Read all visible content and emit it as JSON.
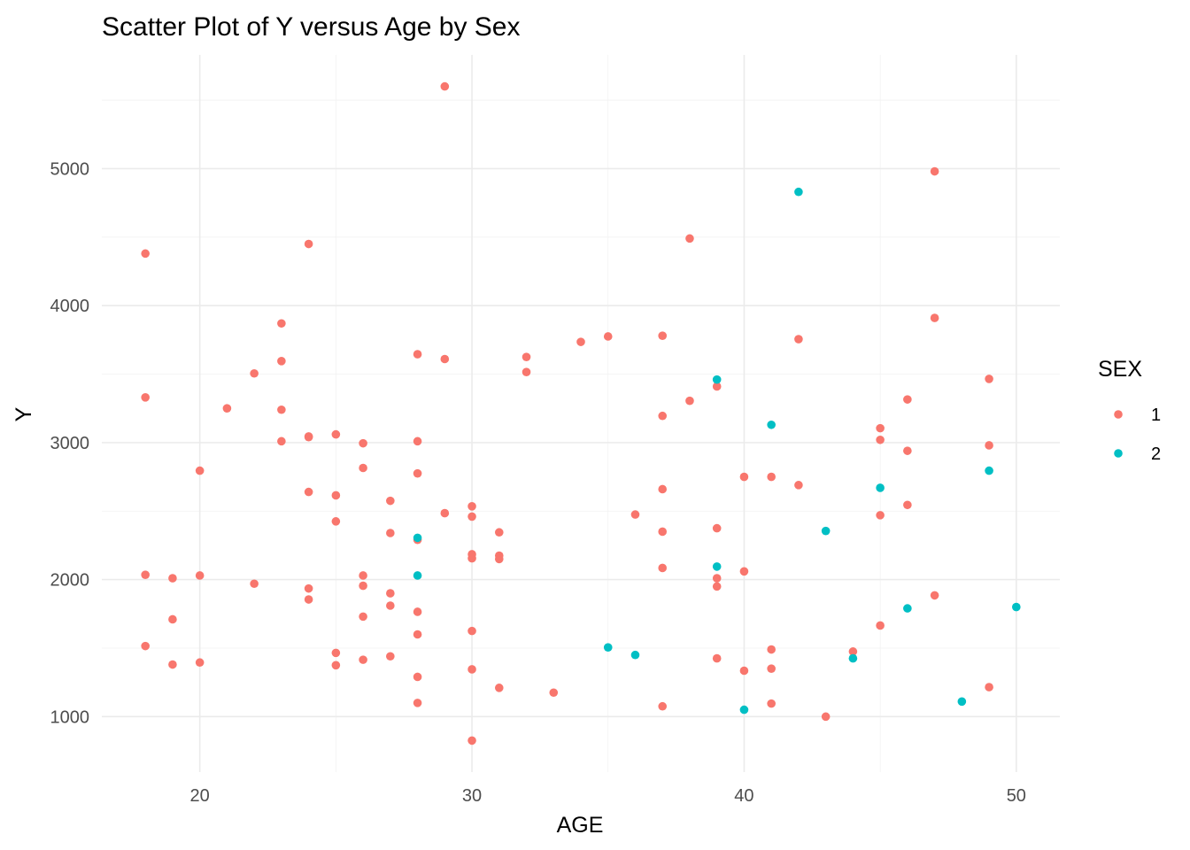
{
  "chart_data": {
    "type": "scatter",
    "title": "Scatter Plot of Y versus Age by Sex",
    "xlabel": "AGE",
    "ylabel": "Y",
    "xlim": [
      16.4,
      51.6
    ],
    "ylim": [
      595,
      5830
    ],
    "x_ticks": [
      20,
      30,
      40,
      50
    ],
    "y_ticks": [
      1000,
      2000,
      3000,
      4000,
      5000
    ],
    "x_tick_labels": [
      "20",
      "30",
      "40",
      "50"
    ],
    "y_tick_labels": [
      "1000",
      "2000",
      "3000",
      "4000",
      "5000"
    ],
    "grid": true,
    "legend": {
      "title": "SEX",
      "position": "right"
    },
    "series": [
      {
        "name": "1",
        "color": "#F8766D",
        "points": [
          [
            18,
            4380
          ],
          [
            18,
            3330
          ],
          [
            18,
            2035
          ],
          [
            18,
            1515
          ],
          [
            19,
            2010
          ],
          [
            19,
            1710
          ],
          [
            19,
            1380
          ],
          [
            20,
            2795
          ],
          [
            20,
            2030
          ],
          [
            20,
            1395
          ],
          [
            21,
            3250
          ],
          [
            22,
            3505
          ],
          [
            22,
            1970
          ],
          [
            23,
            3870
          ],
          [
            23,
            3595
          ],
          [
            23,
            3240
          ],
          [
            23,
            3010
          ],
          [
            24,
            4450
          ],
          [
            24,
            3045
          ],
          [
            24,
            3040
          ],
          [
            24,
            2640
          ],
          [
            24,
            1935
          ],
          [
            24,
            1855
          ],
          [
            25,
            3060
          ],
          [
            25,
            2615
          ],
          [
            25,
            2425
          ],
          [
            25,
            1465
          ],
          [
            25,
            1375
          ],
          [
            26,
            2995
          ],
          [
            26,
            2815
          ],
          [
            26,
            2030
          ],
          [
            26,
            1955
          ],
          [
            26,
            1730
          ],
          [
            26,
            1415
          ],
          [
            27,
            2575
          ],
          [
            27,
            2340
          ],
          [
            27,
            1900
          ],
          [
            27,
            1810
          ],
          [
            27,
            1440
          ],
          [
            28,
            3645
          ],
          [
            28,
            3010
          ],
          [
            28,
            2775
          ],
          [
            28,
            2290
          ],
          [
            28,
            1765
          ],
          [
            28,
            1600
          ],
          [
            28,
            1290
          ],
          [
            28,
            1100
          ],
          [
            29,
            5600
          ],
          [
            29,
            3610
          ],
          [
            29,
            2485
          ],
          [
            30,
            2535
          ],
          [
            30,
            2460
          ],
          [
            30,
            2185
          ],
          [
            30,
            2155
          ],
          [
            30,
            1625
          ],
          [
            30,
            1345
          ],
          [
            30,
            825
          ],
          [
            31,
            2345
          ],
          [
            31,
            2175
          ],
          [
            31,
            2150
          ],
          [
            31,
            1210
          ],
          [
            32,
            3625
          ],
          [
            32,
            3515
          ],
          [
            33,
            1175
          ],
          [
            34,
            3735
          ],
          [
            35,
            3775
          ],
          [
            36,
            2475
          ],
          [
            37,
            3780
          ],
          [
            37,
            3195
          ],
          [
            37,
            2660
          ],
          [
            37,
            2350
          ],
          [
            37,
            2085
          ],
          [
            37,
            1075
          ],
          [
            38,
            4490
          ],
          [
            38,
            3305
          ],
          [
            39,
            3410
          ],
          [
            39,
            2375
          ],
          [
            39,
            2010
          ],
          [
            39,
            1950
          ],
          [
            39,
            1425
          ],
          [
            40,
            2750
          ],
          [
            40,
            2060
          ],
          [
            40,
            1335
          ],
          [
            41,
            2750
          ],
          [
            41,
            1490
          ],
          [
            41,
            1350
          ],
          [
            41,
            1095
          ],
          [
            42,
            3755
          ],
          [
            42,
            2690
          ],
          [
            43,
            1000
          ],
          [
            44,
            1475
          ],
          [
            45,
            3105
          ],
          [
            45,
            3020
          ],
          [
            45,
            2470
          ],
          [
            45,
            1665
          ],
          [
            46,
            3315
          ],
          [
            46,
            2940
          ],
          [
            46,
            2545
          ],
          [
            47,
            4980
          ],
          [
            47,
            3910
          ],
          [
            47,
            1885
          ],
          [
            49,
            3465
          ],
          [
            49,
            2980
          ],
          [
            49,
            1215
          ]
        ]
      },
      {
        "name": "2",
        "color": "#00BFC4",
        "points": [
          [
            28,
            2305
          ],
          [
            28,
            2030
          ],
          [
            35,
            1505
          ],
          [
            36,
            1450
          ],
          [
            39,
            3460
          ],
          [
            39,
            2095
          ],
          [
            40,
            1050
          ],
          [
            41,
            3130
          ],
          [
            42,
            4830
          ],
          [
            43,
            2355
          ],
          [
            44,
            1425
          ],
          [
            45,
            2670
          ],
          [
            46,
            1790
          ],
          [
            48,
            1110
          ],
          [
            49,
            2795
          ],
          [
            50,
            1800
          ]
        ]
      }
    ]
  }
}
